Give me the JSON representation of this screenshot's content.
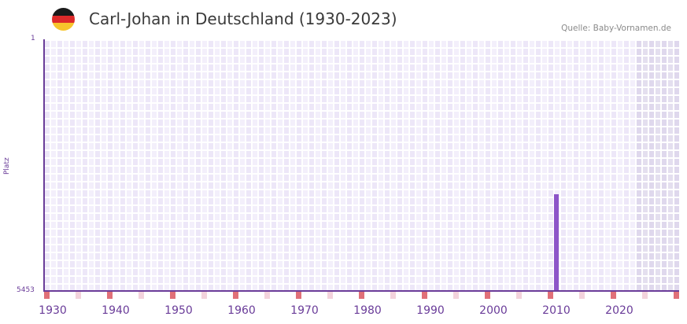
{
  "header": {
    "title": "Carl-Johan in Deutschland (1930-2023)",
    "source": "Quelle: Baby-Vornamen.de",
    "flag_colors": [
      "#1a1a1a",
      "#dd2a2a",
      "#f7c52c"
    ]
  },
  "axis": {
    "y_top_label": "1",
    "y_bottom_label": "5453",
    "y_name": "Platz",
    "x_labels": [
      "1930",
      "1940",
      "1950",
      "1960",
      "1970",
      "1980",
      "1990",
      "2000",
      "2010",
      "2020"
    ]
  },
  "colors": {
    "bar": "#8d55c8",
    "axis": "#6a3c99",
    "marker_strong": "#e07078",
    "marker_light": "#f3d3dc",
    "cell_a": "#ede7f8",
    "cell_b": "#f3effb"
  },
  "chart_data": {
    "type": "bar",
    "title": "Carl-Johan in Deutschland (1930-2023)",
    "xlabel": "",
    "ylabel": "Platz",
    "y_inverted": true,
    "ylim": [
      5453,
      1
    ],
    "x_range": [
      1929,
      2029
    ],
    "x_ticks": [
      1930,
      1940,
      1950,
      1960,
      1970,
      1980,
      1990,
      2000,
      2010,
      2020
    ],
    "categories": [
      "2010"
    ],
    "values": [
      3357
    ],
    "grid": true,
    "legend": null,
    "annotations": [
      "Quelle: Baby-Vornamen.de"
    ]
  }
}
